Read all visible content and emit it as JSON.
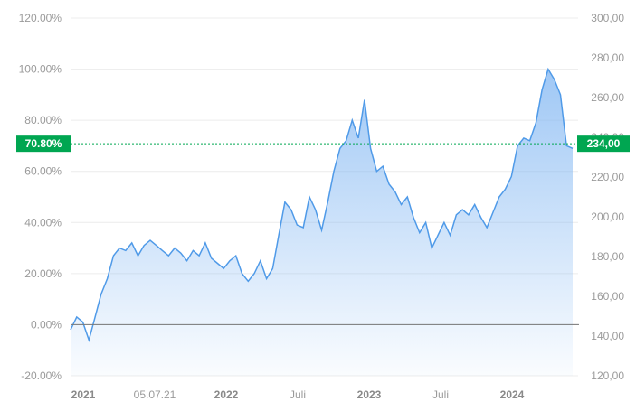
{
  "chart_data": {
    "type": "area",
    "left_axis": {
      "ticks": [
        "120.00%",
        "100.00%",
        "80.00%",
        "60.00%",
        "40.00%",
        "20.00%",
        "0.00%",
        "-20.00%"
      ],
      "range": [
        -20,
        120
      ]
    },
    "right_axis": {
      "ticks": [
        "300,00",
        "280,00",
        "260,00",
        "240,00",
        "220,00",
        "200,00",
        "180,00",
        "160,00",
        "140,00",
        "120,00"
      ],
      "range": [
        120,
        300
      ]
    },
    "x_ticks": [
      {
        "label": "2021",
        "bold": true
      },
      {
        "label": "05.07.21",
        "bold": false
      },
      {
        "label": "2022",
        "bold": true
      },
      {
        "label": "Juli",
        "bold": false
      },
      {
        "label": "2023",
        "bold": true
      },
      {
        "label": "Juli",
        "bold": false
      },
      {
        "label": "2024",
        "bold": true
      }
    ],
    "current": {
      "percent_label": "70.80%",
      "price_label": "234,00",
      "percent": 70.8
    },
    "series": [
      {
        "values": [
          -2,
          3,
          1,
          -6,
          3,
          12,
          18,
          27,
          30,
          29,
          32,
          27,
          31,
          33,
          31,
          29,
          27,
          30,
          28,
          25,
          29,
          27,
          32,
          26,
          24,
          22,
          25,
          27,
          20,
          17,
          20,
          25,
          18,
          22,
          35,
          48,
          45,
          39,
          38,
          50,
          45,
          37,
          48,
          60,
          69,
          72,
          80,
          73,
          88,
          69,
          60,
          62,
          55,
          52,
          47,
          50,
          42,
          36,
          40,
          30,
          35,
          40,
          35,
          43,
          45,
          43,
          47,
          42,
          38,
          44,
          50,
          53,
          58,
          70,
          73,
          72,
          79,
          92,
          100,
          96,
          90,
          70,
          69
        ]
      }
    ],
    "line_color": "#4f9ae8",
    "fill_color": "#7fb5f2",
    "badge_color": "#00a651",
    "grid": true
  }
}
